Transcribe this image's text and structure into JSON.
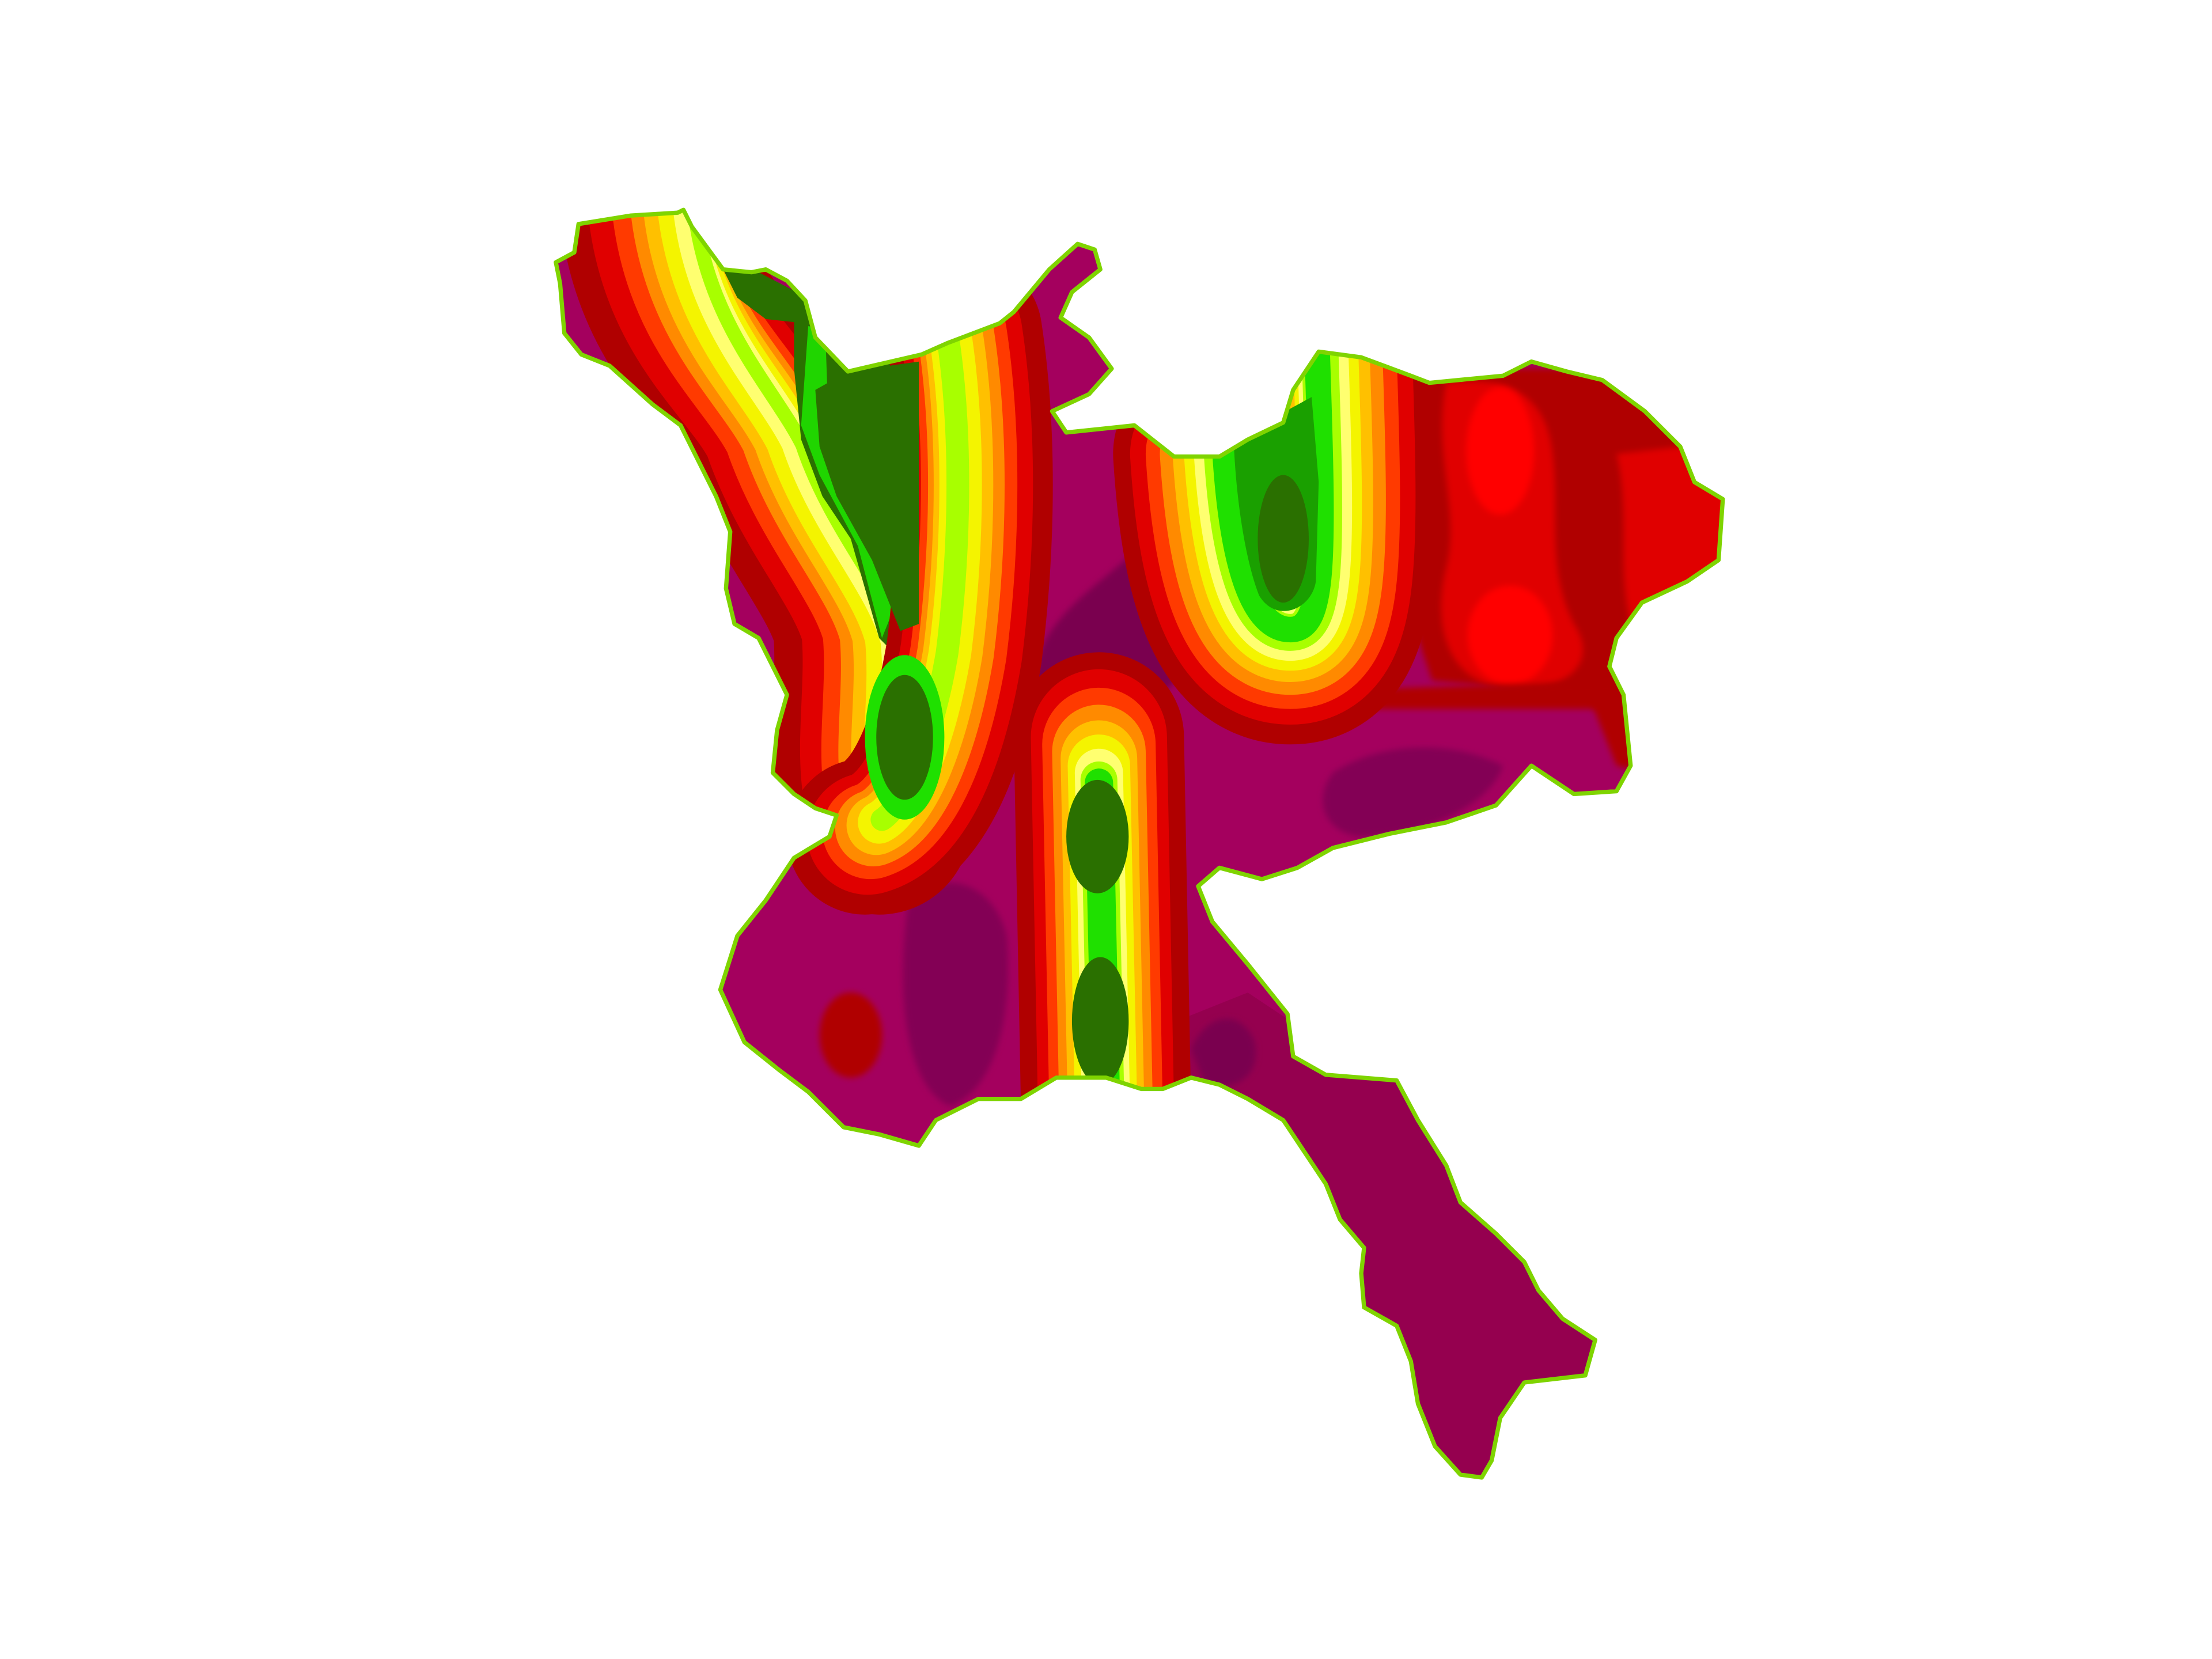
{
  "map": {
    "type": "choropleth-contour",
    "background_color": "#ffffff",
    "outline_color": "#7fd400",
    "palette": {
      "base": "#a4005e",
      "deep": "#830054",
      "darkest": "#7a0050",
      "tail": "#95004f",
      "dark_red": "#b00000",
      "red": "#e00000",
      "bright_red": "#ff0000",
      "orange_red": "#ff3a00",
      "orange": "#ff8a00",
      "amber": "#ffc000",
      "yellow": "#f4f400",
      "light_yellow": "#ffff70",
      "lime": "#a8ff00",
      "green": "#1fe000",
      "mid_green": "#1aa000",
      "dark_green": "#2a7000"
    }
  }
}
